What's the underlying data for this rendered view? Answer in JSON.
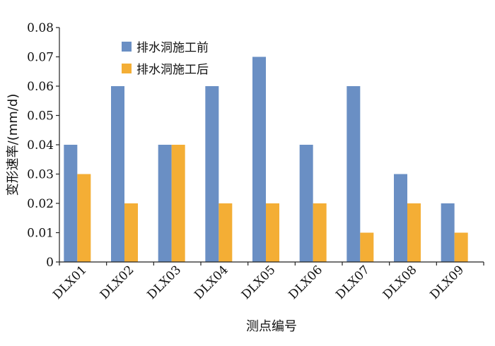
{
  "chart_data": {
    "type": "bar",
    "title": "",
    "xlabel": "测点编号",
    "ylabel": "变形速率/(mm/d)",
    "ylim": [
      0,
      0.08
    ],
    "yticks": [
      "0",
      "0.01",
      "0.02",
      "0.03",
      "0.04",
      "0.05",
      "0.06",
      "0.07",
      "0.08"
    ],
    "categories": [
      "DLX01",
      "DLX02",
      "DLX03",
      "DLX04",
      "DLX05",
      "DLX06",
      "DLX07",
      "DLX08",
      "DLX09"
    ],
    "series": [
      {
        "name": "排水洞施工前",
        "color": "#6a8fc4",
        "values": [
          0.04,
          0.06,
          0.04,
          0.06,
          0.07,
          0.04,
          0.06,
          0.03,
          0.02
        ]
      },
      {
        "name": "排水洞施工后",
        "color": "#f4ae35",
        "values": [
          0.03,
          0.02,
          0.04,
          0.02,
          0.02,
          0.02,
          0.01,
          0.02,
          0.01
        ]
      }
    ],
    "grid": false,
    "legend": "top-left"
  }
}
